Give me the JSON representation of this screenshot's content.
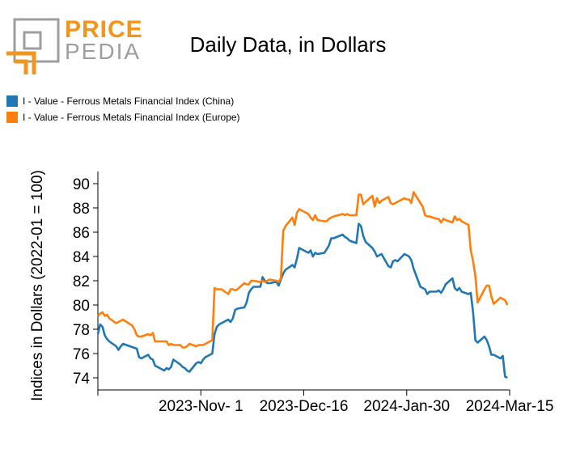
{
  "logo": {
    "price": "PRICE",
    "pedia": "PEDIA"
  },
  "colors": {
    "china": "#1f77b4",
    "europe": "#ff7f0e",
    "logo_orange": "#f0951e",
    "logo_gray": "#9e9e9e"
  },
  "chart_data": {
    "type": "line",
    "title": "Daily Data, in Dollars",
    "xlabel": "",
    "ylabel": "Indices in Dollars (2022-01 = 100)",
    "ylim": [
      73,
      91
    ],
    "yticks": [
      74,
      76,
      78,
      80,
      82,
      84,
      86,
      88,
      90
    ],
    "xlim": [
      "2023-09-17",
      "2024-03-15"
    ],
    "xticks": [
      {
        "date": "2023-09-17",
        "label": ""
      },
      {
        "date": "2023-11-01",
        "label": "2023-Nov- 1"
      },
      {
        "date": "2023-12-16",
        "label": "2023-Dec-16"
      },
      {
        "date": "2024-01-30",
        "label": "2024-Jan-30"
      },
      {
        "date": "2024-03-15",
        "label": "2024-Mar-15"
      }
    ],
    "legend_position": "top-left",
    "series": [
      {
        "name": "I - Value - Ferrous Metals Financial Index (China)",
        "color": "#1f77b4",
        "points": [
          [
            "2023-09-17",
            77.6
          ],
          [
            "2023-09-18",
            78.4
          ],
          [
            "2023-09-19",
            78.2
          ],
          [
            "2023-09-20",
            77.5
          ],
          [
            "2023-09-21",
            77.2
          ],
          [
            "2023-09-22",
            77.0
          ],
          [
            "2023-09-25",
            76.6
          ],
          [
            "2023-09-26",
            76.3
          ],
          [
            "2023-09-27",
            76.6
          ],
          [
            "2023-09-28",
            76.8
          ],
          [
            "2023-10-04",
            76.4
          ],
          [
            "2023-10-05",
            75.7
          ],
          [
            "2023-10-06",
            75.6
          ],
          [
            "2023-10-09",
            75.9
          ],
          [
            "2023-10-10",
            75.6
          ],
          [
            "2023-10-11",
            75.5
          ],
          [
            "2023-10-12",
            75.0
          ],
          [
            "2023-10-13",
            74.9
          ],
          [
            "2023-10-16",
            74.6
          ],
          [
            "2023-10-17",
            74.8
          ],
          [
            "2023-10-18",
            74.7
          ],
          [
            "2023-10-19",
            74.9
          ],
          [
            "2023-10-20",
            75.5
          ],
          [
            "2023-10-23",
            75.1
          ],
          [
            "2023-10-24",
            74.9
          ],
          [
            "2023-10-25",
            74.8
          ],
          [
            "2023-10-26",
            74.6
          ],
          [
            "2023-10-27",
            74.5
          ],
          [
            "2023-10-30",
            75.2
          ],
          [
            "2023-10-31",
            75.3
          ],
          [
            "2023-11-01",
            75.2
          ],
          [
            "2023-11-02",
            75.5
          ],
          [
            "2023-11-03",
            75.7
          ],
          [
            "2023-11-06",
            76.0
          ],
          [
            "2023-11-07",
            77.6
          ],
          [
            "2023-11-08",
            78.2
          ],
          [
            "2023-11-09",
            78.4
          ],
          [
            "2023-11-10",
            78.5
          ],
          [
            "2023-11-13",
            78.8
          ],
          [
            "2023-11-14",
            78.6
          ],
          [
            "2023-11-15",
            78.9
          ],
          [
            "2023-11-16",
            79.6
          ],
          [
            "2023-11-17",
            79.7
          ],
          [
            "2023-11-20",
            79.8
          ],
          [
            "2023-11-21",
            80.2
          ],
          [
            "2023-11-22",
            81.0
          ],
          [
            "2023-11-23",
            81.3
          ],
          [
            "2023-11-24",
            81.5
          ],
          [
            "2023-11-27",
            81.5
          ],
          [
            "2023-11-28",
            82.3
          ],
          [
            "2023-11-29",
            82.0
          ],
          [
            "2023-11-30",
            81.8
          ],
          [
            "2023-12-01",
            81.8
          ],
          [
            "2023-12-04",
            81.9
          ],
          [
            "2023-12-05",
            81.6
          ],
          [
            "2023-12-06",
            82.1
          ],
          [
            "2023-12-07",
            82.6
          ],
          [
            "2023-12-08",
            82.9
          ],
          [
            "2023-12-11",
            83.3
          ],
          [
            "2023-12-12",
            83.1
          ],
          [
            "2023-12-13",
            83.8
          ],
          [
            "2023-12-14",
            84.7
          ],
          [
            "2023-12-15",
            84.6
          ],
          [
            "2023-12-18",
            84.3
          ],
          [
            "2023-12-19",
            84.5
          ],
          [
            "2023-12-20",
            84.0
          ],
          [
            "2023-12-21",
            84.3
          ],
          [
            "2023-12-22",
            84.2
          ],
          [
            "2023-12-25",
            84.3
          ],
          [
            "2023-12-26",
            84.6
          ],
          [
            "2023-12-27",
            84.9
          ],
          [
            "2023-12-28",
            85.5
          ],
          [
            "2023-12-29",
            85.5
          ],
          [
            "2024-01-02",
            85.8
          ],
          [
            "2024-01-03",
            85.6
          ],
          [
            "2024-01-04",
            85.5
          ],
          [
            "2024-01-05",
            85.3
          ],
          [
            "2024-01-08",
            85.1
          ],
          [
            "2024-01-09",
            86.7
          ],
          [
            "2024-01-10",
            86.5
          ],
          [
            "2024-01-11",
            85.7
          ],
          [
            "2024-01-12",
            85.2
          ],
          [
            "2024-01-15",
            84.7
          ],
          [
            "2024-01-16",
            84.4
          ],
          [
            "2024-01-17",
            84.0
          ],
          [
            "2024-01-18",
            84.1
          ],
          [
            "2024-01-19",
            84.2
          ],
          [
            "2024-01-22",
            83.2
          ],
          [
            "2024-01-23",
            83.1
          ],
          [
            "2024-01-24",
            83.6
          ],
          [
            "2024-01-25",
            83.7
          ],
          [
            "2024-01-26",
            83.6
          ],
          [
            "2024-01-29",
            84.2
          ],
          [
            "2024-01-30",
            84.1
          ],
          [
            "2024-01-31",
            84.0
          ],
          [
            "2024-02-01",
            83.7
          ],
          [
            "2024-02-02",
            83.0
          ],
          [
            "2024-02-05",
            81.5
          ],
          [
            "2024-02-06",
            81.4
          ],
          [
            "2024-02-07",
            81.3
          ],
          [
            "2024-02-08",
            80.9
          ],
          [
            "2024-02-09",
            81.1
          ],
          [
            "2024-02-12",
            81.1
          ],
          [
            "2024-02-13",
            81.2
          ],
          [
            "2024-02-14",
            81.0
          ],
          [
            "2024-02-15",
            81.3
          ],
          [
            "2024-02-16",
            81.7
          ],
          [
            "2024-02-19",
            82.2
          ],
          [
            "2024-02-20",
            81.4
          ],
          [
            "2024-02-21",
            81.2
          ],
          [
            "2024-02-22",
            81.4
          ],
          [
            "2024-02-23",
            81.1
          ],
          [
            "2024-02-26",
            80.9
          ],
          [
            "2024-02-27",
            81.0
          ],
          [
            "2024-02-28",
            79.4
          ],
          [
            "2024-02-29",
            77.1
          ],
          [
            "2024-03-01",
            76.9
          ],
          [
            "2024-03-04",
            77.4
          ],
          [
            "2024-03-05",
            77.1
          ],
          [
            "2024-03-06",
            76.6
          ],
          [
            "2024-03-07",
            75.9
          ],
          [
            "2024-03-08",
            75.9
          ],
          [
            "2024-03-11",
            75.6
          ],
          [
            "2024-03-12",
            75.8
          ],
          [
            "2024-03-13",
            74.1
          ],
          [
            "2024-03-14",
            74.0
          ]
        ]
      },
      {
        "name": "I - Value - Ferrous Metals Financial Index (Europe)",
        "color": "#ff7f0e",
        "points": [
          [
            "2023-09-17",
            79.1
          ],
          [
            "2023-09-18",
            79.3
          ],
          [
            "2023-09-19",
            79.4
          ],
          [
            "2023-09-20",
            79.1
          ],
          [
            "2023-09-21",
            79.2
          ],
          [
            "2023-09-22",
            78.9
          ],
          [
            "2023-09-25",
            78.5
          ],
          [
            "2023-09-26",
            78.6
          ],
          [
            "2023-09-27",
            78.7
          ],
          [
            "2023-09-28",
            78.8
          ],
          [
            "2023-10-02",
            78.3
          ],
          [
            "2023-10-03",
            78.0
          ],
          [
            "2023-10-04",
            77.5
          ],
          [
            "2023-10-05",
            77.4
          ],
          [
            "2023-10-06",
            77.4
          ],
          [
            "2023-10-09",
            77.6
          ],
          [
            "2023-10-10",
            77.5
          ],
          [
            "2023-10-11",
            77.7
          ],
          [
            "2023-10-12",
            77.0
          ],
          [
            "2023-10-13",
            77.0
          ],
          [
            "2023-10-16",
            77.0
          ],
          [
            "2023-10-17",
            77.0
          ],
          [
            "2023-10-18",
            76.7
          ],
          [
            "2023-10-19",
            76.8
          ],
          [
            "2023-10-20",
            76.7
          ],
          [
            "2023-10-23",
            76.7
          ],
          [
            "2023-10-24",
            76.5
          ],
          [
            "2023-10-25",
            76.5
          ],
          [
            "2023-10-26",
            76.6
          ],
          [
            "2023-10-27",
            76.8
          ],
          [
            "2023-10-30",
            76.6
          ],
          [
            "2023-10-31",
            76.7
          ],
          [
            "2023-11-01",
            76.7
          ],
          [
            "2023-11-02",
            76.7
          ],
          [
            "2023-11-03",
            76.8
          ],
          [
            "2023-11-06",
            77.1
          ],
          [
            "2023-11-07",
            81.4
          ],
          [
            "2023-11-08",
            81.3
          ],
          [
            "2023-11-09",
            81.3
          ],
          [
            "2023-11-10",
            81.3
          ],
          [
            "2023-11-13",
            80.9
          ],
          [
            "2023-11-14",
            81.3
          ],
          [
            "2023-11-15",
            81.3
          ],
          [
            "2023-11-16",
            81.2
          ],
          [
            "2023-11-17",
            81.3
          ],
          [
            "2023-11-20",
            81.8
          ],
          [
            "2023-11-21",
            81.7
          ],
          [
            "2023-11-22",
            81.7
          ],
          [
            "2023-11-23",
            82.0
          ],
          [
            "2023-11-24",
            82.0
          ],
          [
            "2023-11-27",
            81.9
          ],
          [
            "2023-11-28",
            82.0
          ],
          [
            "2023-11-29",
            81.9
          ],
          [
            "2023-11-30",
            82.0
          ],
          [
            "2023-12-01",
            82.1
          ],
          [
            "2023-12-04",
            82.0
          ],
          [
            "2023-12-05",
            81.9
          ],
          [
            "2023-12-06",
            82.2
          ],
          [
            "2023-12-07",
            86.1
          ],
          [
            "2023-12-08",
            86.5
          ],
          [
            "2023-12-11",
            87.2
          ],
          [
            "2023-12-12",
            86.6
          ],
          [
            "2023-12-13",
            87.6
          ],
          [
            "2023-12-14",
            87.9
          ],
          [
            "2023-12-15",
            87.8
          ],
          [
            "2023-12-18",
            87.5
          ],
          [
            "2023-12-19",
            87.2
          ],
          [
            "2023-12-20",
            87.0
          ],
          [
            "2023-12-21",
            87.4
          ],
          [
            "2023-12-22",
            87.0
          ],
          [
            "2023-12-25",
            86.9
          ],
          [
            "2023-12-26",
            86.9
          ],
          [
            "2023-12-27",
            87.1
          ],
          [
            "2023-12-28",
            87.2
          ],
          [
            "2023-12-29",
            87.3
          ],
          [
            "2024-01-02",
            87.5
          ],
          [
            "2024-01-03",
            87.4
          ],
          [
            "2024-01-04",
            87.5
          ],
          [
            "2024-01-05",
            87.4
          ],
          [
            "2024-01-08",
            87.4
          ],
          [
            "2024-01-09",
            89.1
          ],
          [
            "2024-01-10",
            89.1
          ],
          [
            "2024-01-11",
            88.3
          ],
          [
            "2024-01-12",
            88.5
          ],
          [
            "2024-01-15",
            89.0
          ],
          [
            "2024-01-16",
            88.1
          ],
          [
            "2024-01-17",
            88.8
          ],
          [
            "2024-01-18",
            88.4
          ],
          [
            "2024-01-19",
            88.6
          ],
          [
            "2024-01-22",
            88.9
          ],
          [
            "2024-01-23",
            88.4
          ],
          [
            "2024-01-24",
            88.3
          ],
          [
            "2024-01-25",
            88.4
          ],
          [
            "2024-01-26",
            88.5
          ],
          [
            "2024-01-29",
            88.8
          ],
          [
            "2024-01-30",
            88.7
          ],
          [
            "2024-01-31",
            88.7
          ],
          [
            "2024-02-01",
            88.4
          ],
          [
            "2024-02-02",
            89.3
          ],
          [
            "2024-02-05",
            88.4
          ],
          [
            "2024-02-06",
            88.1
          ],
          [
            "2024-02-07",
            87.4
          ],
          [
            "2024-02-08",
            87.3
          ],
          [
            "2024-02-09",
            87.3
          ],
          [
            "2024-02-12",
            87.1
          ],
          [
            "2024-02-13",
            87.1
          ],
          [
            "2024-02-14",
            86.8
          ],
          [
            "2024-02-15",
            87.1
          ],
          [
            "2024-02-16",
            87.0
          ],
          [
            "2024-02-19",
            86.8
          ],
          [
            "2024-02-20",
            87.3
          ],
          [
            "2024-02-21",
            87.0
          ],
          [
            "2024-02-22",
            87.1
          ],
          [
            "2024-02-23",
            86.9
          ],
          [
            "2024-02-26",
            86.6
          ],
          [
            "2024-02-27",
            84.5
          ],
          [
            "2024-02-28",
            83.6
          ],
          [
            "2024-02-29",
            82.4
          ],
          [
            "2024-03-01",
            80.2
          ],
          [
            "2024-03-04",
            81.3
          ],
          [
            "2024-03-05",
            81.6
          ],
          [
            "2024-03-06",
            81.6
          ],
          [
            "2024-03-07",
            80.7
          ],
          [
            "2024-03-08",
            80.1
          ],
          [
            "2024-03-11",
            80.6
          ],
          [
            "2024-03-12",
            80.5
          ],
          [
            "2024-03-13",
            80.4
          ],
          [
            "2024-03-14",
            80.0
          ]
        ]
      }
    ]
  }
}
